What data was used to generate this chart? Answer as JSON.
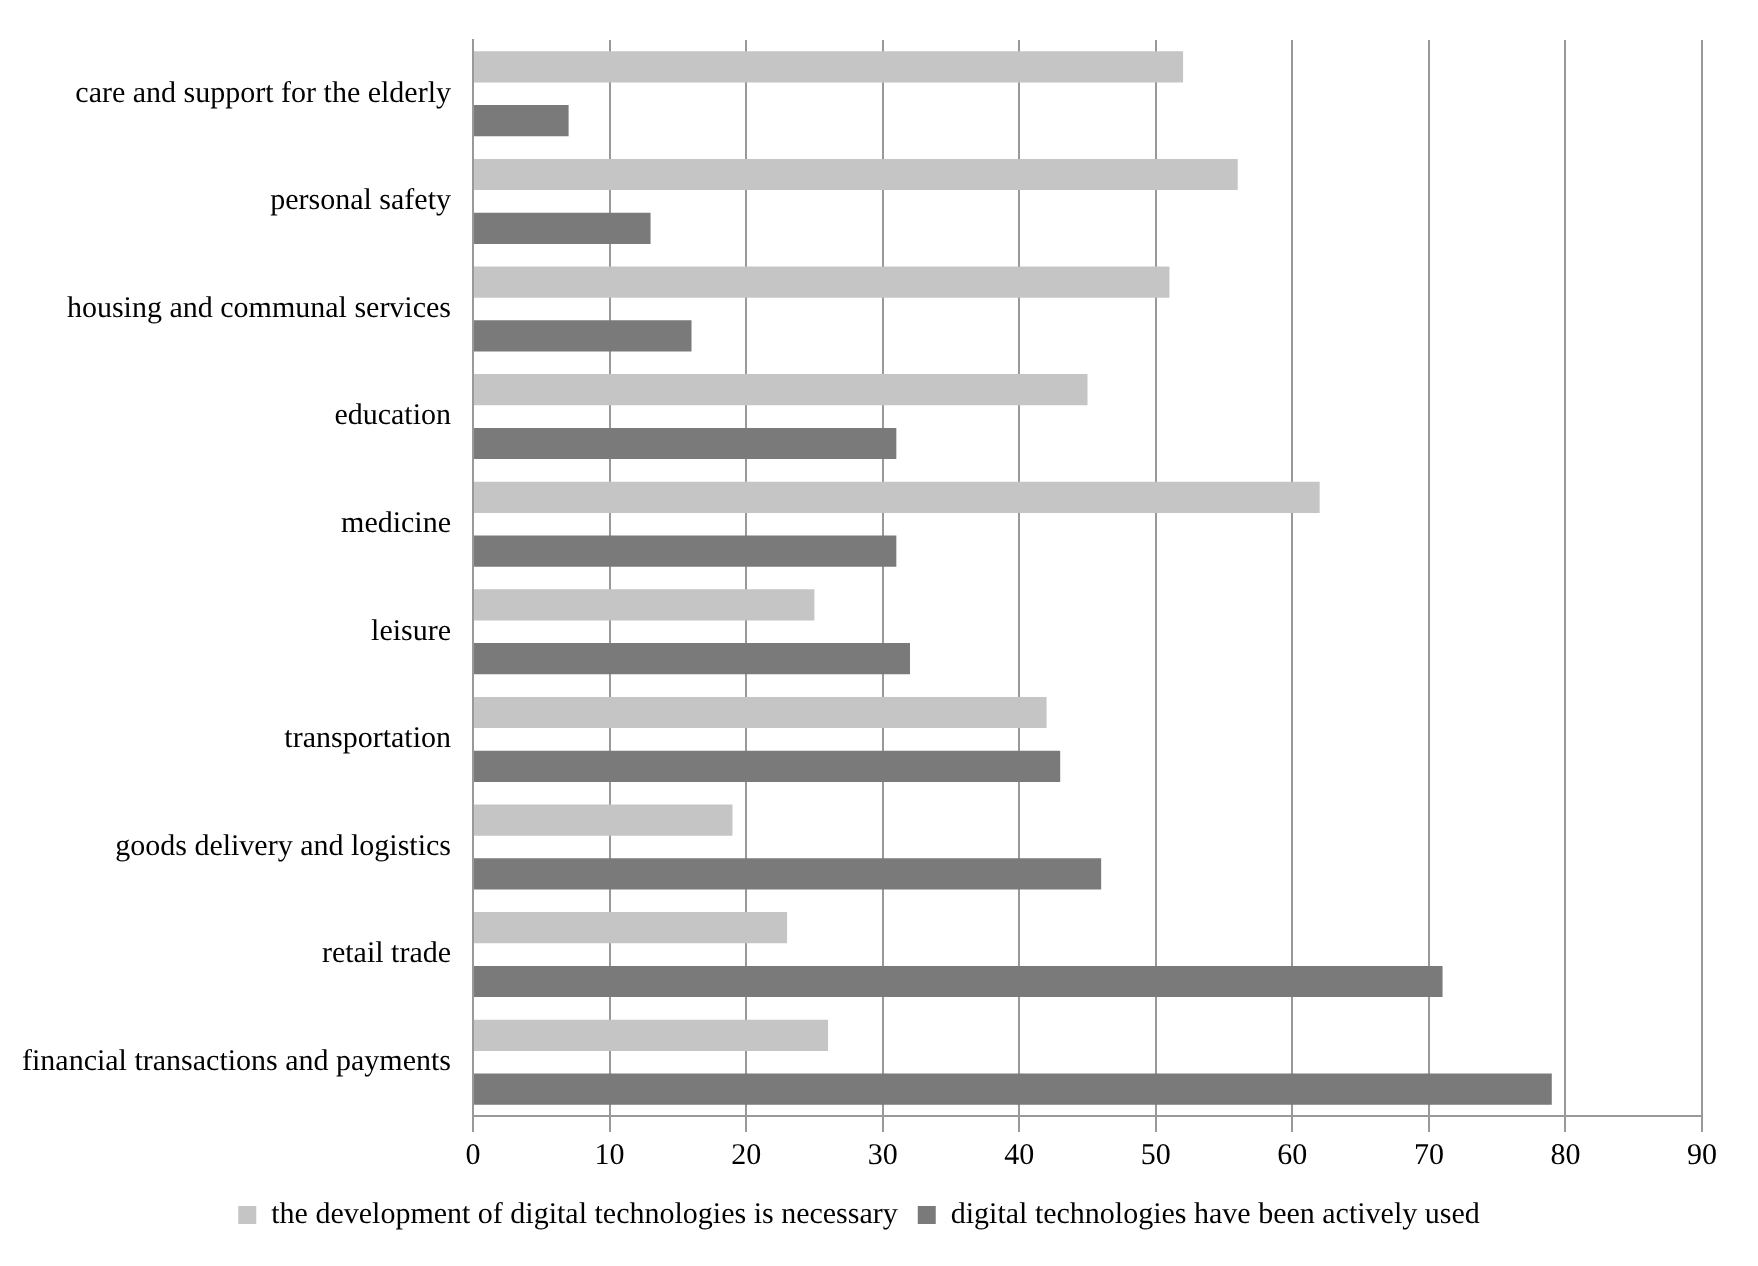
{
  "chart_data": {
    "type": "bar",
    "orientation": "horizontal",
    "categories": [
      "care and support for the elderly",
      "personal safety",
      "housing and communal services",
      "education",
      "medicine",
      "leisure",
      "transportation",
      "goods delivery and logistics",
      "retail trade",
      "financial transactions and payments"
    ],
    "series": [
      {
        "name": "the development of digital technologies is necessary",
        "color": "#c4c5c4",
        "values": [
          52,
          56,
          51,
          45,
          62,
          25,
          42,
          19,
          23,
          26
        ]
      },
      {
        "name": "digital technologies have been actively used",
        "color": "#7a7a7a",
        "values": [
          7,
          13,
          16,
          31,
          31,
          32,
          43,
          46,
          71,
          79
        ]
      }
    ],
    "xlim": [
      0,
      90
    ],
    "xticks": [
      0,
      10,
      20,
      30,
      40,
      50,
      60,
      70,
      80,
      90
    ],
    "grid": "x",
    "legend": "bottom"
  }
}
